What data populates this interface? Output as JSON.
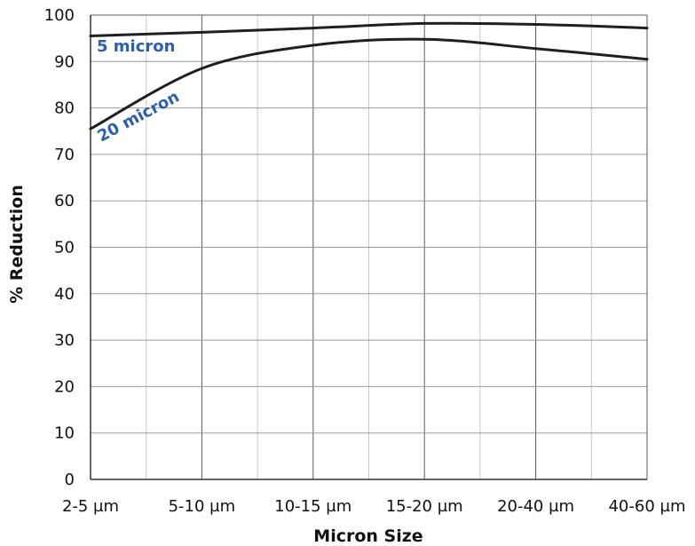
{
  "chart_data": {
    "type": "line",
    "title": "",
    "xlabel": "Micron Size",
    "ylabel": "% Reduction",
    "categories": [
      "2-5 µm",
      "5-10 µm",
      "10-15 µm",
      "15-20 µm",
      "20-40 µm",
      "40-60 µm"
    ],
    "ylim": [
      0,
      100
    ],
    "yticks": [
      "0",
      "10",
      "20",
      "30",
      "40",
      "50",
      "60",
      "70",
      "80",
      "90",
      "100"
    ],
    "grid": true,
    "series": [
      {
        "name": "5 micron",
        "color": "#1f1f1f",
        "label_color": "#2e5fa8",
        "values": [
          95.5,
          96.3,
          97.2,
          98.2,
          98.0,
          97.2
        ]
      },
      {
        "name": "20 micron",
        "color": "#1f1f1f",
        "label_color": "#2e5fa8",
        "values": [
          75.5,
          88.5,
          93.5,
          94.8,
          92.8,
          90.5
        ]
      }
    ]
  }
}
